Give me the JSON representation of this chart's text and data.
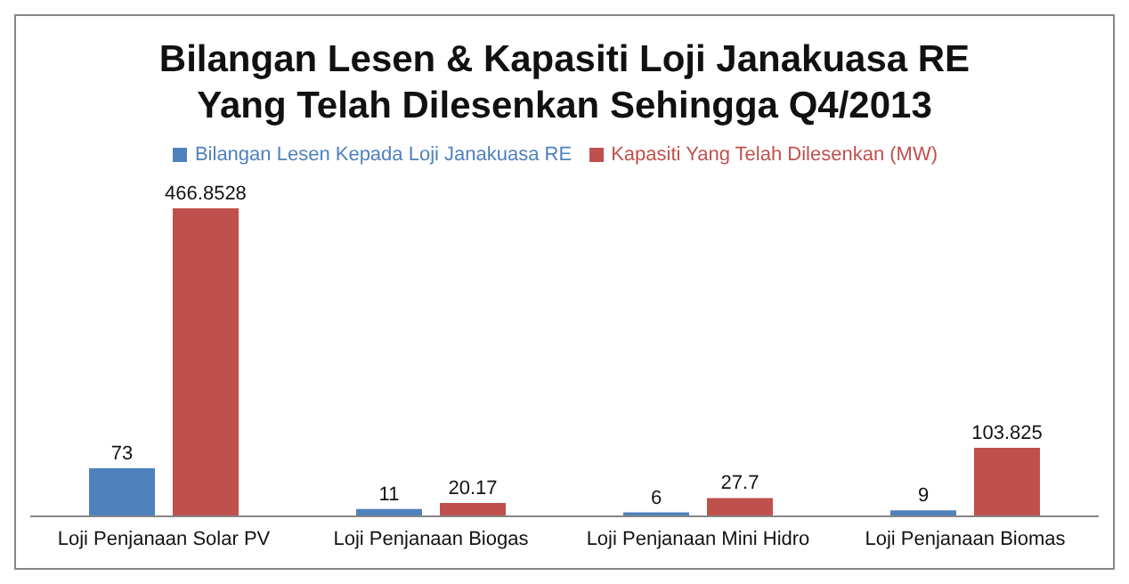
{
  "chart_data": {
    "type": "bar",
    "title": "Bilangan Lesen & Kapasiti Loji Janakuasa RE Yang Telah Dilesenkan Sehingga Q4/2013",
    "categories": [
      "Loji Penjanaan Solar PV",
      "Loji Penjanaan Biogas",
      "Loji Penjanaan Mini Hidro",
      "Loji Penjanaan Biomas"
    ],
    "series": [
      {
        "name": "Bilangan Lesen Kepada Loji Janakuasa  RE",
        "color": "#4f81bd",
        "values": [
          73,
          11,
          6,
          9
        ]
      },
      {
        "name": "Kapasiti Yang Telah Dilesenkan (MW)",
        "color": "#c0504d",
        "values": [
          466.8528,
          20.17,
          27.7,
          103.825
        ]
      }
    ],
    "data_labels": true,
    "legend": "top",
    "grid": false,
    "tick_labels": "x"
  }
}
